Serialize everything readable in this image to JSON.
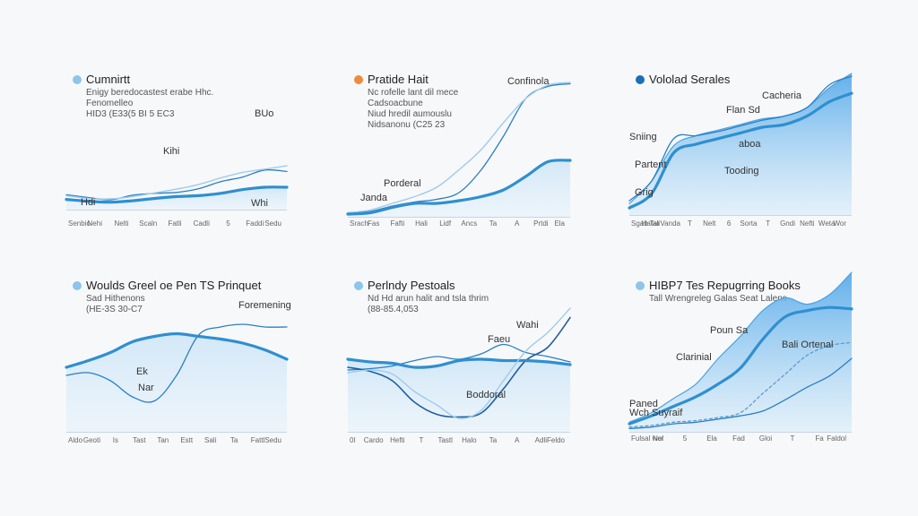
{
  "chart_data": [
    {
      "type": "line",
      "title": "Cumnirtt",
      "accent": "#8ec5ea",
      "subtitle": [
        "Enigy beredocastest erabe Hhc.",
        "Fenomelleo",
        "HID3 (E33(5 BI 5 EC3"
      ],
      "annotations": [
        "BUo",
        "Kihi",
        "Hdi",
        "Whi"
      ],
      "ticks": [
        "Senbio",
        "Nehi",
        "Nelti",
        "Scaln",
        "Fatli",
        "Cadli",
        "5",
        "Faddi",
        "Sedu"
      ],
      "xlim": [
        0,
        10
      ],
      "ylim": [
        0,
        10
      ],
      "x": [
        0,
        1,
        2,
        3,
        4,
        5,
        6,
        7,
        8,
        9,
        10
      ],
      "series": [
        {
          "name": "thin",
          "style": "thin",
          "values": [
            3.2,
            2.6,
            2.1,
            3.1,
            3.5,
            3.7,
            4.5,
            6.0,
            7.0,
            8.5,
            8.2
          ]
        },
        {
          "name": "faint",
          "style": "faint",
          "values": [
            3.0,
            2.4,
            2.3,
            2.8,
            3.6,
            4.4,
            5.4,
            6.8,
            8.0,
            8.7,
            9.4
          ]
        },
        {
          "name": "main",
          "style": "thick",
          "fill": true,
          "values": [
            2.2,
            1.8,
            1.6,
            1.9,
            2.4,
            2.8,
            3.0,
            3.5,
            4.3,
            4.8,
            4.8
          ]
        }
      ]
    },
    {
      "type": "line",
      "title": "Pratide Hait",
      "accent": "#f08a3c",
      "subtitle": [
        "Nc rofelle lant dil mece",
        "Cadsoacbune",
        "Niud hredil aumouslu",
        "Nidsanonu (C25 23"
      ],
      "annotations": [
        "Confinola",
        "Porderal",
        "Janda"
      ],
      "ticks": [
        "Srach",
        "Fas",
        "Fafti",
        "Hali",
        "Lidf",
        "Ancs",
        "Ta",
        "A",
        "Prtdi",
        "Ela"
      ],
      "xlim": [
        0,
        10
      ],
      "ylim": [
        0,
        10
      ],
      "x": [
        0,
        1,
        2,
        3,
        4,
        5,
        6,
        7,
        8,
        9,
        10
      ],
      "series": [
        {
          "name": "thin",
          "style": "thin",
          "values": [
            0.3,
            0.4,
            0.8,
            1.1,
            1.3,
            1.8,
            3.5,
            6.0,
            8.8,
            9.7,
            9.9
          ]
        },
        {
          "name": "faint",
          "style": "faint",
          "values": [
            0.3,
            0.5,
            1.0,
            1.5,
            2.2,
            3.5,
            5.0,
            7.0,
            8.8,
            9.8,
            10.0
          ]
        },
        {
          "name": "main",
          "style": "thick",
          "fill": true,
          "values": [
            0.2,
            0.3,
            0.7,
            1.0,
            1.0,
            1.2,
            1.5,
            2.0,
            3.0,
            4.1,
            4.2
          ]
        }
      ]
    },
    {
      "type": "area",
      "title": "Vololad Serales",
      "accent": "#1c6fb6",
      "subtitle": [],
      "annotations": [
        "Cacheria",
        "Flan Sd",
        "Sniing",
        "aboa",
        "Partent",
        "Tooding",
        "Grig"
      ],
      "ticks": [
        "Sgab Tar",
        "Hatali",
        "Vanda",
        "T",
        "Nelt",
        "6",
        "Sorta",
        "T",
        "Gndi",
        "Nefti",
        "Weta",
        "Wor"
      ],
      "xlim": [
        0,
        10
      ],
      "ylim": [
        0,
        10
      ],
      "x": [
        0,
        1,
        2,
        3,
        4,
        5,
        6,
        7,
        8,
        9,
        10
      ],
      "series": [
        {
          "name": "area",
          "style": "area",
          "values": [
            0.8,
            2.4,
            4.9,
            5.6,
            6.0,
            6.4,
            6.8,
            7.0,
            7.6,
            9.0,
            10.0
          ]
        },
        {
          "name": "main",
          "style": "thick",
          "values": [
            0.5,
            1.5,
            4.4,
            5.0,
            5.4,
            5.8,
            6.2,
            6.4,
            7.0,
            8.0,
            8.6
          ]
        },
        {
          "name": "thin",
          "style": "thin",
          "values": [
            1.0,
            2.4,
            5.4,
            5.6,
            5.9,
            6.3,
            6.7,
            7.0,
            7.6,
            9.2,
            9.8
          ]
        }
      ]
    },
    {
      "type": "line",
      "title": "Woulds Greel oe Pen TS Prinquet",
      "accent": "#8ec5ea",
      "subtitle": [
        "Sad Hithenons",
        "(HE-3S 30-C7"
      ],
      "annotations": [
        "Foremening",
        "Ek",
        "Nar"
      ],
      "ticks": [
        "Aldo",
        "Geoti",
        "Is",
        "Tast",
        "Tan",
        "Estt",
        "Sali",
        "Ta",
        "Fattl",
        "Sedu"
      ],
      "xlim": [
        0,
        10
      ],
      "ylim": [
        0,
        10
      ],
      "x": [
        0,
        1,
        2,
        3,
        4,
        5,
        6,
        7,
        8,
        9,
        10
      ],
      "series": [
        {
          "name": "thin",
          "style": "thin",
          "values": [
            4.2,
            4.4,
            3.8,
            2.6,
            2.3,
            4.2,
            7.2,
            7.8,
            8.0,
            7.8,
            7.8
          ]
        },
        {
          "name": "main",
          "style": "thick",
          "fill": true,
          "values": [
            4.8,
            5.3,
            5.9,
            6.7,
            7.1,
            7.3,
            7.1,
            6.9,
            6.6,
            6.1,
            5.4
          ]
        }
      ]
    },
    {
      "type": "line",
      "title": "Perlndy Pestoals",
      "accent": "#8ec5ea",
      "subtitle": [
        "Nd Hd arun halit and tsla thrim",
        "(88-85.4,053"
      ],
      "annotations": [
        "Wahi",
        "Faeu",
        "Boddoral"
      ],
      "ticks": [
        "0l",
        "Cardo",
        "Hefti",
        "T",
        "Tastl",
        "Halo",
        "Ta",
        "A",
        "Adli",
        "Feldo"
      ],
      "xlim": [
        0,
        10
      ],
      "ylim": [
        0,
        10
      ],
      "x": [
        0,
        1,
        2,
        3,
        4,
        5,
        6,
        7,
        8,
        9,
        10
      ],
      "series": [
        {
          "name": "thin",
          "style": "thin",
          "values": [
            4.6,
            4.7,
            4.9,
            5.3,
            5.6,
            5.4,
            5.8,
            6.5,
            5.9,
            5.6,
            5.2
          ]
        },
        {
          "name": "dark",
          "style": "dark",
          "values": [
            4.8,
            4.5,
            3.8,
            2.2,
            1.3,
            1.1,
            1.4,
            3.2,
            5.3,
            6.3,
            8.5
          ]
        },
        {
          "name": "main",
          "style": "thick",
          "fill": true,
          "values": [
            5.4,
            5.2,
            5.1,
            4.8,
            4.9,
            5.3,
            5.4,
            5.3,
            5.3,
            5.2,
            5.0
          ]
        },
        {
          "name": "faint",
          "style": "faint",
          "values": [
            4.4,
            4.6,
            4.3,
            3.0,
            2.0,
            1.0,
            1.6,
            3.8,
            6.0,
            7.4,
            9.2
          ]
        }
      ]
    },
    {
      "type": "area",
      "title": "HIBP7 Tes Repugrring Books",
      "accent": "#8ec5ea",
      "subtitle": [
        "Tall Wrengreleg Galas Seat Lalens"
      ],
      "annotations": [
        "Poun Sa",
        "Bali Ortenal",
        "Clarinial",
        "Paned",
        "Wch Suyraif"
      ],
      "ticks": [
        "Fulsal wor",
        "Nel",
        "5",
        "Ela",
        "Fad",
        "Gloi",
        "T",
        "Fa",
        "Faldol"
      ],
      "xlim": [
        0,
        10
      ],
      "ylim": [
        0,
        10
      ],
      "x": [
        0,
        1,
        2,
        3,
        4,
        5,
        6,
        7,
        8,
        9,
        10
      ],
      "series": [
        {
          "name": "area",
          "style": "area",
          "values": [
            0.6,
            1.2,
            2.1,
            3.0,
            4.6,
            6.0,
            7.6,
            8.4,
            8.0,
            8.6,
            10.0
          ]
        },
        {
          "name": "main",
          "style": "thick",
          "values": [
            0.5,
            1.0,
            1.6,
            2.2,
            3.0,
            4.0,
            5.8,
            7.2,
            7.6,
            7.8,
            7.7
          ]
        },
        {
          "name": "thin",
          "style": "thin",
          "values": [
            0.2,
            0.3,
            0.5,
            0.6,
            0.8,
            1.0,
            1.3,
            2.0,
            2.8,
            3.5,
            4.6
          ]
        },
        {
          "name": "dashed",
          "style": "dashed",
          "values": [
            0.3,
            0.4,
            0.6,
            0.7,
            0.9,
            1.2,
            2.4,
            3.6,
            4.8,
            5.4,
            5.6
          ]
        }
      ]
    }
  ]
}
